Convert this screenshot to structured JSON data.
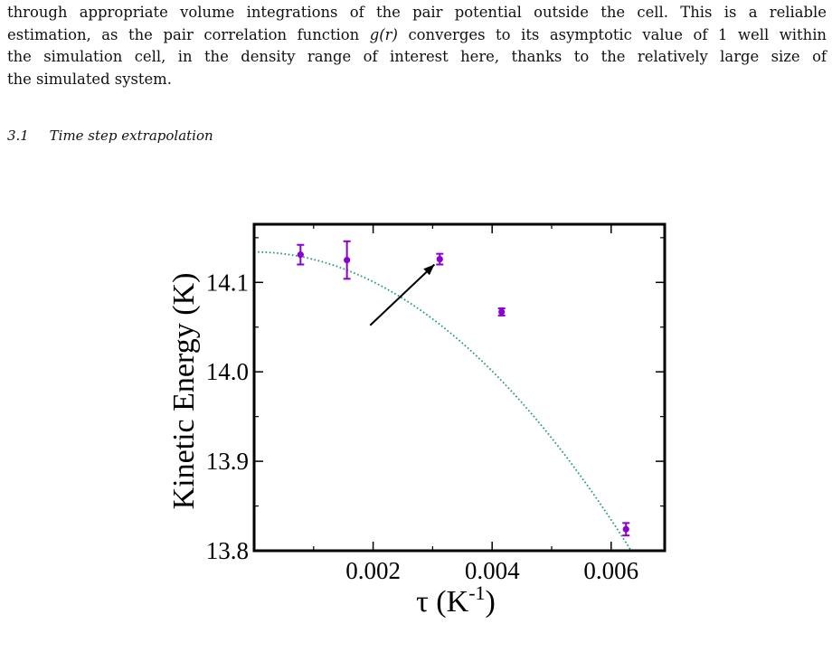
{
  "paragraph": {
    "lines": [
      {
        "pre": "through appropriate volume integrations of the pair potential outside the cell. This is a reliable"
      },
      {
        "pre": "estimation, as the pair correlation function ",
        "math": "g(r)",
        "post": " converges to its asymptotic value of 1 well within"
      },
      {
        "pre": "the simulation cell, in the density range of interest here, thanks to the relatively large size of"
      },
      {
        "pre": "the simulated system."
      }
    ]
  },
  "section": {
    "number": "3.1",
    "title": "Time step extrapolation"
  },
  "chart_data": {
    "type": "scatter",
    "xlabel_main": "τ (K",
    "xlabel_sup": "-1",
    "xlabel_end": ")",
    "ylabel": "Kinetic Energy (K)",
    "xlim": [
      0.0,
      0.0069
    ],
    "ylim": [
      13.8,
      14.165
    ],
    "x_ticks": [
      0.002,
      0.004,
      0.006
    ],
    "x_tick_labels": [
      "0.002",
      "0.004",
      "0.006"
    ],
    "y_ticks": [
      13.8,
      13.9,
      14.0,
      14.1
    ],
    "y_tick_labels": [
      "13.8",
      "13.9",
      "14.0",
      "14.1"
    ],
    "series": [
      {
        "points": [
          {
            "x": 0.00078,
            "y": 14.131,
            "err": 0.011
          },
          {
            "x": 0.00156,
            "y": 14.125,
            "err": 0.021
          },
          {
            "x": 0.00312,
            "y": 14.126,
            "err": 0.006
          },
          {
            "x": 0.00416,
            "y": 14.067,
            "err": 0.004
          },
          {
            "x": 0.00625,
            "y": 13.824,
            "err": 0.007
          }
        ],
        "color": "#8a00d4"
      }
    ],
    "fit": {
      "intercept": 14.134,
      "curvature": -8320,
      "color": "#1a9a7a"
    },
    "arrow": {
      "from": [
        0.00195,
        14.052
      ],
      "to": [
        0.00303,
        14.12
      ]
    }
  }
}
